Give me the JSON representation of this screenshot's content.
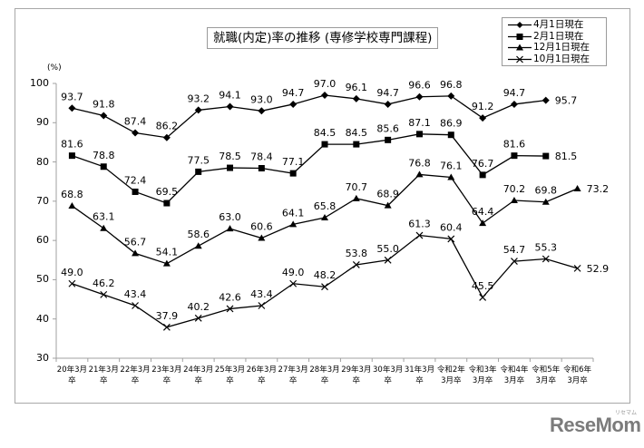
{
  "chart_data": {
    "type": "line",
    "title": "就職(内定)率の推移 (専修学校専門課程)",
    "xlabel": "",
    "ylabel": "(%)",
    "ylim": [
      30,
      100
    ],
    "yticks": [
      30,
      40,
      50,
      60,
      70,
      80,
      90,
      100
    ],
    "grid": false,
    "legend_position": "top-right",
    "categories": [
      "20年3月卒",
      "21年3月卒",
      "22年3月卒",
      "23年3月卒",
      "24年3月卒",
      "25年3月卒",
      "26年3月卒",
      "27年3月卒",
      "28年3月卒",
      "29年3月卒",
      "30年3月卒",
      "31年3月卒",
      "令和2年3月卒",
      "令和3年3月卒",
      "令和4年3月卒",
      "令和5年3月卒",
      "令和6年3月卒"
    ],
    "category_lines": [
      [
        "20年3月",
        "卒"
      ],
      [
        "21年3月",
        "卒"
      ],
      [
        "22年3月",
        "卒"
      ],
      [
        "23年3月",
        "卒"
      ],
      [
        "24年3月",
        "卒"
      ],
      [
        "25年3月",
        "卒"
      ],
      [
        "26年3月",
        "卒"
      ],
      [
        "27年3月",
        "卒"
      ],
      [
        "28年3月",
        "卒"
      ],
      [
        "29年3月",
        "卒"
      ],
      [
        "30年3月",
        "卒"
      ],
      [
        "31年3月",
        "卒"
      ],
      [
        "令和2年",
        "3月卒"
      ],
      [
        "令和3年",
        "3月卒"
      ],
      [
        "令和4年",
        "3月卒"
      ],
      [
        "令和5年",
        "3月卒"
      ],
      [
        "令和6年",
        "3月卒"
      ]
    ],
    "series": [
      {
        "name": "4月1日現在",
        "marker": "diamond",
        "values": [
          93.7,
          91.8,
          87.4,
          86.2,
          93.2,
          94.1,
          93.0,
          94.7,
          97.0,
          96.1,
          94.7,
          96.6,
          96.8,
          91.2,
          94.7,
          95.7,
          null
        ]
      },
      {
        "name": "2月1日現在",
        "marker": "square",
        "values": [
          81.6,
          78.8,
          72.4,
          69.5,
          77.5,
          78.5,
          78.4,
          77.1,
          84.5,
          84.5,
          85.6,
          87.1,
          86.9,
          76.7,
          81.6,
          81.5,
          null
        ]
      },
      {
        "name": "12月1日現在",
        "marker": "triangle",
        "values": [
          68.8,
          63.1,
          56.7,
          54.1,
          58.6,
          63.0,
          60.6,
          64.1,
          65.8,
          70.7,
          68.9,
          76.8,
          76.1,
          64.4,
          70.2,
          69.8,
          73.2
        ]
      },
      {
        "name": "10月1日現在",
        "marker": "x",
        "values": [
          49.0,
          46.2,
          43.4,
          37.9,
          40.2,
          42.6,
          43.4,
          49.0,
          48.2,
          53.8,
          55.0,
          61.3,
          60.4,
          45.5,
          54.7,
          55.3,
          52.9
        ]
      }
    ]
  },
  "chart": {
    "title": "就職(内定)率の推移 (専修学校専門課程)",
    "unit_label": "(%)",
    "line_color": "#000000",
    "axis_color": "#a0a0a0"
  },
  "legend": {
    "items": [
      {
        "label": "4月1日現在",
        "marker": "diamond"
      },
      {
        "label": "2月1日現在",
        "marker": "square"
      },
      {
        "label": "12月1日現在",
        "marker": "triangle"
      },
      {
        "label": "10月1日現在",
        "marker": "x"
      }
    ]
  },
  "watermark": {
    "text": "ReseMom",
    "kana": "リセマム"
  }
}
